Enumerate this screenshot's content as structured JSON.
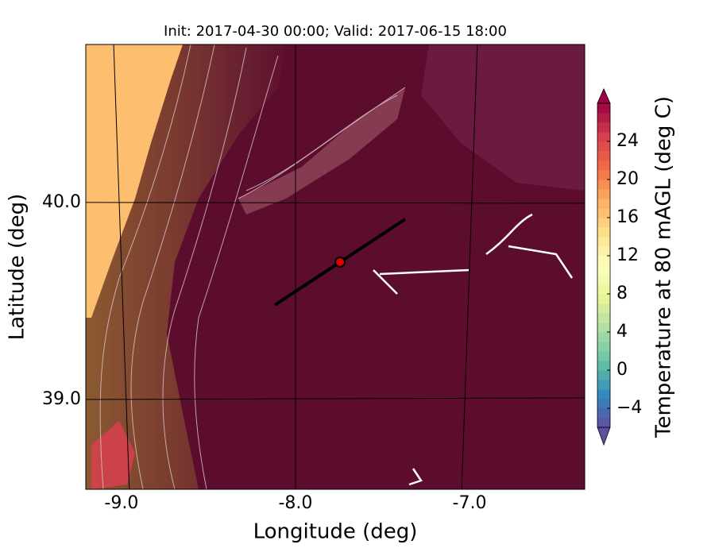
{
  "map": {
    "title": "Init: 2017-04-30 00:00; Valid: 2017-06-15 18:00",
    "x_label": "Longitude (deg)",
    "y_label": "Latitude (deg)",
    "xlim": [
      -9.205,
      -6.338
    ],
    "ylim": [
      38.544,
      40.802
    ],
    "xticks": [
      {
        "value": -9,
        "label": "-9.0"
      },
      {
        "value": -8,
        "label": "-8.0"
      },
      {
        "value": -7,
        "label": "-7.0"
      }
    ],
    "yticks": [
      {
        "value": 39,
        "label": "39.0"
      },
      {
        "value": 40,
        "label": "40.0"
      }
    ],
    "colorbar": {
      "label": "Temperature at 80 mAGL (deg C)",
      "clim": [
        -6,
        28
      ],
      "ticks": [
        {
          "value": -4,
          "label": "−4"
        },
        0,
        4,
        8,
        12,
        16,
        20,
        24
      ]
    }
  }
}
